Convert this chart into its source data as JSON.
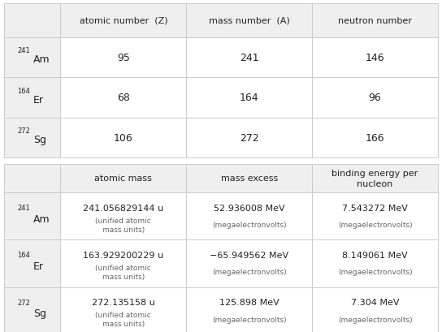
{
  "table1": {
    "col_headers": [
      "atomic number  (Z)",
      "mass number  (A)",
      "neutron number"
    ],
    "rows": [
      {
        "label": "Am",
        "mass_num": "241",
        "Z": "95",
        "A": "241",
        "N": "146"
      },
      {
        "label": "Er",
        "mass_num": "164",
        "Z": "68",
        "A": "164",
        "N": "96"
      },
      {
        "label": "Sg",
        "mass_num": "272",
        "Z": "106",
        "A": "272",
        "N": "166"
      }
    ]
  },
  "table2": {
    "col_headers": [
      "atomic mass",
      "mass excess",
      "binding energy per\nnucleon"
    ],
    "rows": [
      {
        "label": "Am",
        "mass_num": "241",
        "atomic_mass": "241.056829144 u\n(unified atomic\nmass units)",
        "mass_excess": "52.936008 MeV\n(megaelectronvolts)",
        "binding_energy": "7.543272 MeV\n(megaelectronvolts)"
      },
      {
        "label": "Er",
        "mass_num": "164",
        "atomic_mass": "163.929200229 u\n(unified atomic\nmass units)",
        "mass_excess": "−65.949562 MeV\n(megaelectronvolts)",
        "binding_energy": "8.149061 MeV\n(megaelectronvolts)"
      },
      {
        "label": "Sg",
        "mass_num": "272",
        "atomic_mass": "272.135158 u\n(unified atomic\nmass units)",
        "mass_excess": "125.898 MeV\n(megaelectronvolts)",
        "binding_energy": "7.304 MeV\n(megaelectronvolts)"
      }
    ]
  },
  "header_bg": "#efefef",
  "label_bg": "#efefef",
  "cell_bg": "#ffffff",
  "border_color": "#cccccc",
  "text_color": "#222222",
  "small_text_color": "#666666",
  "fig_bg": "#ffffff"
}
